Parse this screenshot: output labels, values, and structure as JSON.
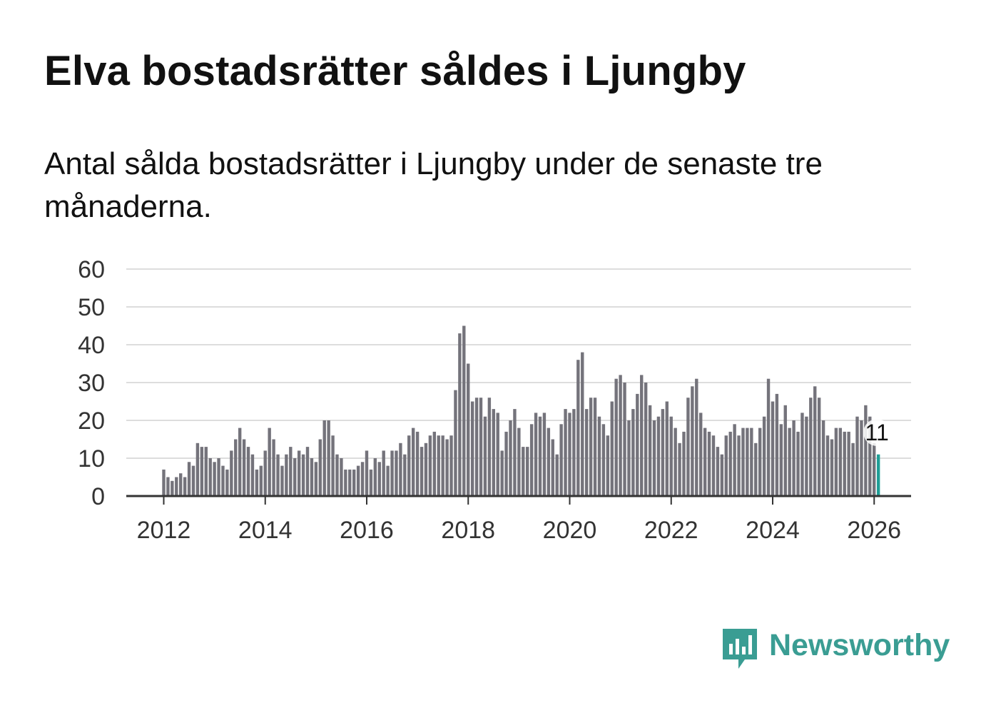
{
  "title": "Elva bostadsrätter såldes i Ljungby",
  "subtitle": "Antal sålda bostadsrätter i Ljungby under de senaste tre månaderna.",
  "brand": {
    "name": "Newsworthy",
    "icon": "newsworthy-logo-icon",
    "color": "#3a9d93"
  },
  "colors": {
    "bar": "#74737b",
    "highlight": "#1f9e96",
    "grid": "#dddddd",
    "axis": "#333333"
  },
  "chart_data": {
    "type": "bar",
    "title": "Elva bostadsrätter såldes i Ljungby",
    "xlabel": "",
    "ylabel": "",
    "ylim": [
      0,
      60
    ],
    "xlim": [
      2011.25,
      2026.75
    ],
    "yticks": [
      0,
      10,
      20,
      30,
      40,
      50,
      60
    ],
    "xticks": [
      2012,
      2014,
      2016,
      2018,
      2020,
      2022,
      2024,
      2026
    ],
    "grid": true,
    "start": 2012.0,
    "step": 0.08333,
    "highlight_label": "11",
    "series": [
      {
        "name": "Antal sålda bostadsrätter",
        "values": [
          7,
          5,
          4,
          5,
          6,
          5,
          9,
          8,
          14,
          13,
          13,
          10,
          9,
          10,
          8,
          7,
          12,
          15,
          18,
          15,
          13,
          11,
          7,
          8,
          12,
          18,
          15,
          11,
          8,
          11,
          13,
          10,
          12,
          11,
          13,
          10,
          9,
          15,
          20,
          20,
          16,
          11,
          10,
          7,
          7,
          7,
          8,
          9,
          12,
          7,
          10,
          9,
          12,
          8,
          12,
          12,
          14,
          11,
          16,
          18,
          17,
          13,
          14,
          16,
          17,
          16,
          16,
          15,
          16,
          28,
          43,
          45,
          35,
          25,
          26,
          26,
          21,
          26,
          23,
          22,
          12,
          17,
          20,
          23,
          18,
          13,
          13,
          19,
          22,
          21,
          22,
          18,
          15,
          11,
          19,
          23,
          22,
          23,
          36,
          38,
          23,
          26,
          26,
          21,
          19,
          16,
          25,
          31,
          32,
          30,
          20,
          23,
          27,
          32,
          30,
          24,
          20,
          21,
          23,
          25,
          21,
          18,
          14,
          17,
          26,
          29,
          31,
          22,
          18,
          17,
          16,
          13,
          11,
          16,
          17,
          19,
          16,
          18,
          18,
          18,
          14,
          18,
          21,
          31,
          25,
          27,
          19,
          24,
          18,
          20,
          17,
          22,
          21,
          26,
          29,
          26,
          20,
          16,
          15,
          18,
          18,
          17,
          17,
          14,
          21,
          20,
          24,
          21,
          14,
          11
        ]
      }
    ]
  }
}
